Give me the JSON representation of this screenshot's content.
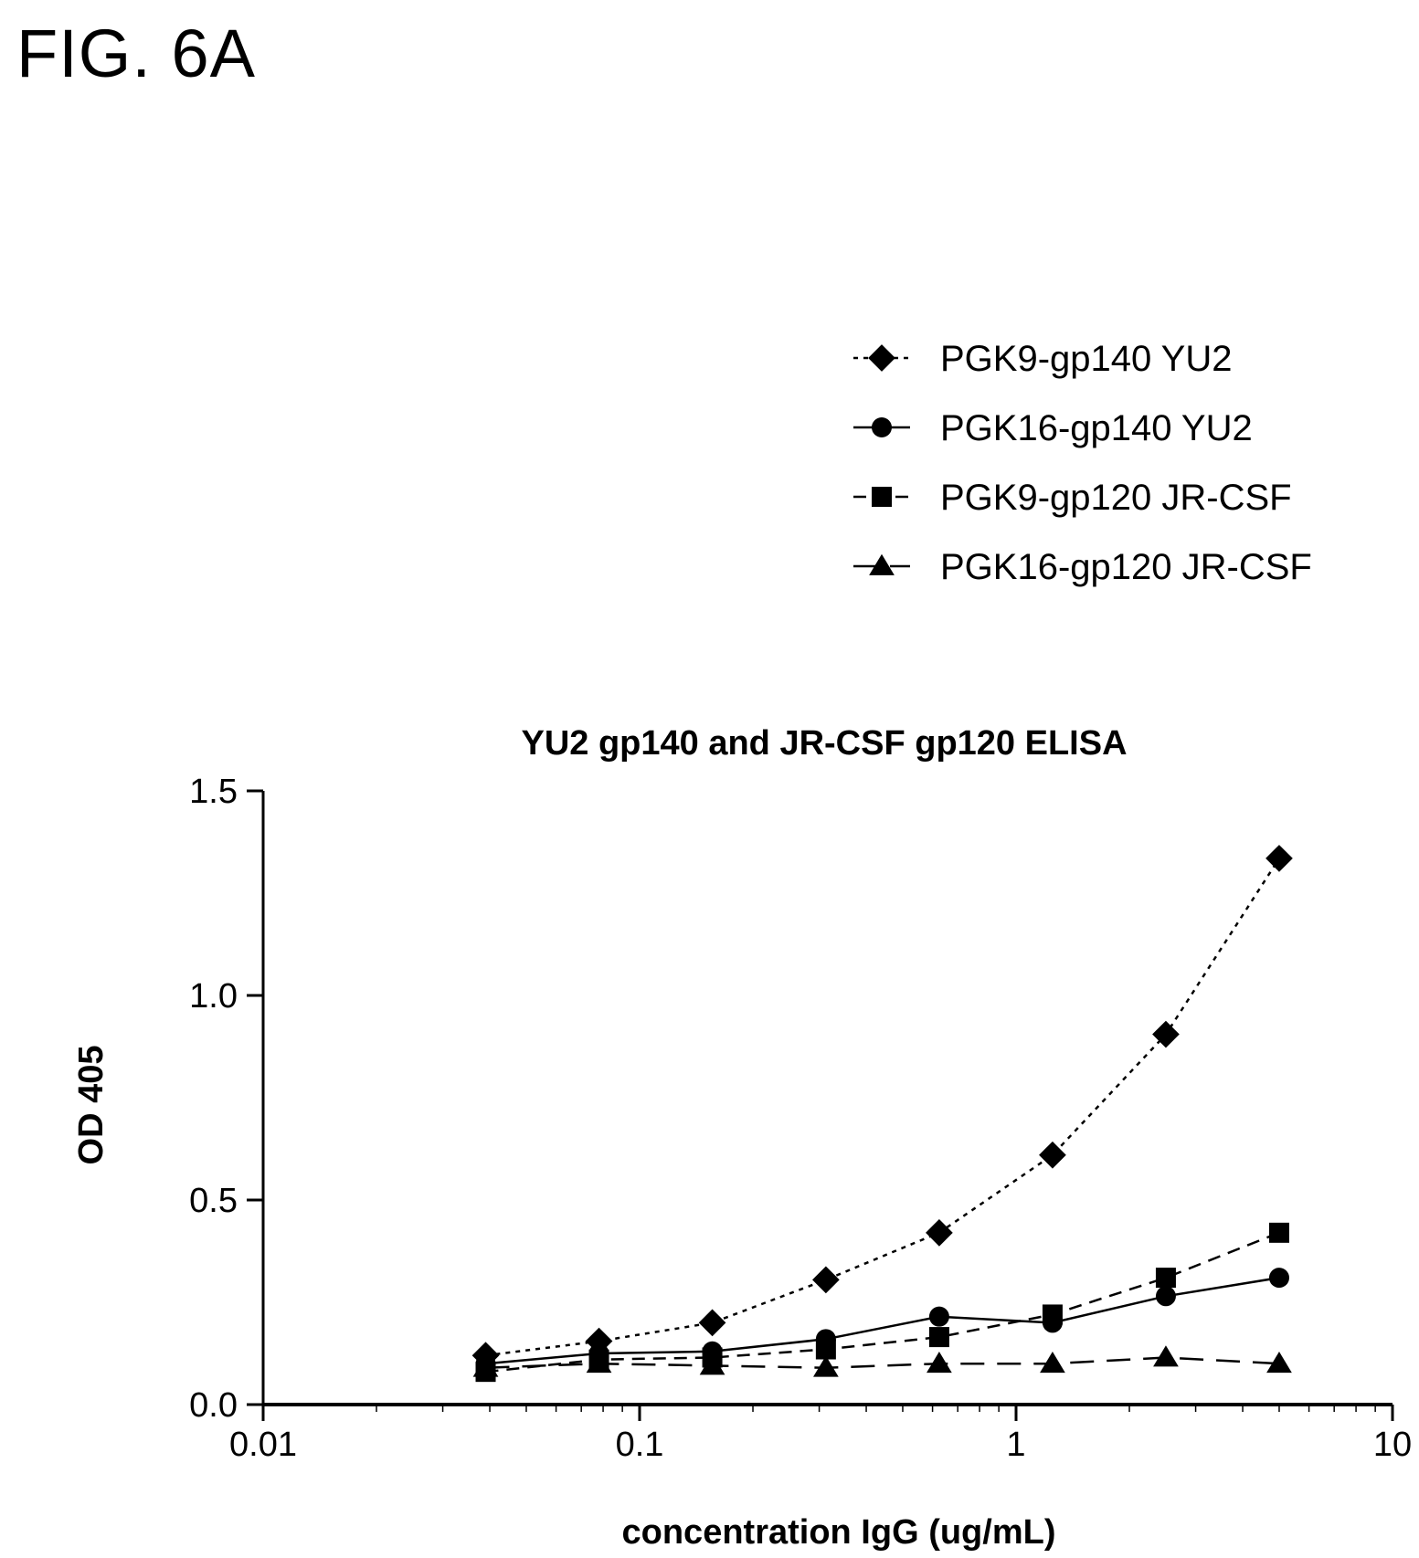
{
  "figure_label": "FIG. 6A",
  "chart_data": {
    "type": "line",
    "title": "YU2 gp140 and JR-CSF gp120 ELISA",
    "xlabel": "concentration IgG (ug/mL)",
    "ylabel": "OD 405",
    "xscale": "log",
    "xlim": [
      0.01,
      10
    ],
    "ylim": [
      0.0,
      1.5
    ],
    "xticks": [
      0.01,
      0.1,
      1,
      10
    ],
    "xtick_labels": [
      "0.01",
      "0.1",
      "1",
      "10"
    ],
    "yticks": [
      0.0,
      0.5,
      1.0,
      1.5
    ],
    "ytick_labels": [
      "0.0",
      "0.5",
      "1.0",
      "1.5"
    ],
    "grid": false,
    "legend_position": "top-right",
    "x": [
      0.039,
      0.078,
      0.156,
      0.3125,
      0.625,
      1.25,
      2.5,
      5.0
    ],
    "series": [
      {
        "name": "PGK9-gp140 YU2",
        "marker": "diamond",
        "line": "dotted",
        "values": [
          0.12,
          0.155,
          0.2,
          0.305,
          0.42,
          0.61,
          0.905,
          1.335
        ]
      },
      {
        "name": "PGK16-gp140 YU2",
        "marker": "circle",
        "line": "solid",
        "values": [
          0.1,
          0.125,
          0.13,
          0.16,
          0.215,
          0.2,
          0.265,
          0.31
        ]
      },
      {
        "name": "PGK9-gp120 JR-CSF",
        "marker": "square",
        "line": "dashed",
        "values": [
          0.08,
          0.11,
          0.115,
          0.135,
          0.165,
          0.22,
          0.31,
          0.42
        ]
      },
      {
        "name": "PGK16-gp120 JR-CSF",
        "marker": "triangle",
        "line": "long-dashed",
        "values": [
          0.09,
          0.1,
          0.095,
          0.09,
          0.1,
          0.1,
          0.115,
          0.1
        ]
      }
    ]
  }
}
